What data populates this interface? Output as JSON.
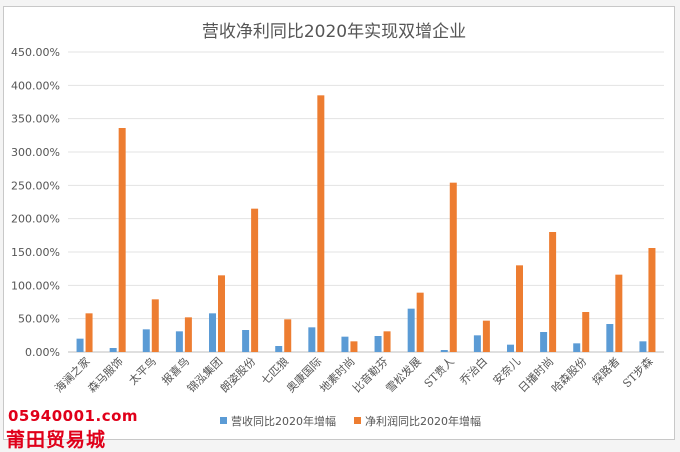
{
  "chart_data": {
    "type": "bar",
    "title": "营收净利同比2020年实现双增企业",
    "xlabel": "",
    "ylabel": "",
    "ylim": [
      0,
      450
    ],
    "yticks": [
      "0.00%",
      "50.00%",
      "100.00%",
      "150.00%",
      "200.00%",
      "250.00%",
      "300.00%",
      "350.00%",
      "400.00%",
      "450.00%"
    ],
    "grid": true,
    "legend": "bottom",
    "categories": [
      "海澜之家",
      "森马服饰",
      "太平鸟",
      "报喜鸟",
      "锦泓集团",
      "朗姿股份",
      "七匹狼",
      "奥康国际",
      "地素时尚",
      "比音勒芬",
      "雪松发展",
      "ST贵人",
      "乔治白",
      "安奈儿",
      "日播时尚",
      "哈森股份",
      "探路者",
      "ST步森"
    ],
    "series": [
      {
        "name": "营收同比2020年增幅",
        "color": "#5b9bd5",
        "values": [
          20,
          6,
          34,
          31,
          58,
          33,
          9,
          37,
          23,
          24,
          65,
          3,
          25,
          11,
          30,
          13,
          42,
          16
        ]
      },
      {
        "name": "净利润同比2020年增幅",
        "color": "#ed7d31",
        "values": [
          58,
          336,
          79,
          52,
          115,
          215,
          49,
          385,
          16,
          31,
          89,
          254,
          47,
          130,
          180,
          60,
          116,
          156
        ]
      }
    ]
  },
  "watermark": {
    "url": "05940001.com",
    "name": "莆田贸易城",
    "color": "#e0001a"
  }
}
